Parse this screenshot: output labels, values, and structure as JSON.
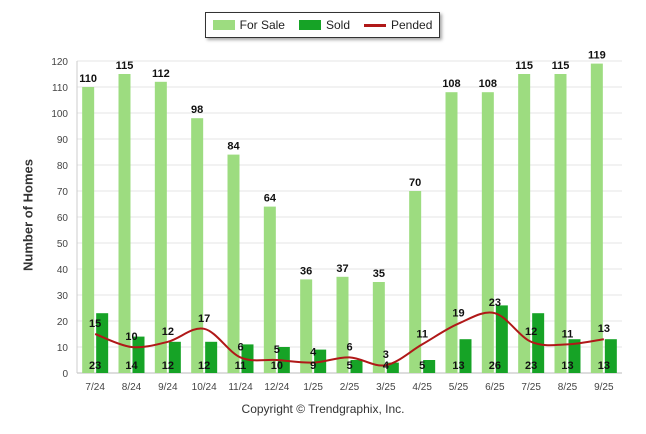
{
  "chart_data": {
    "type": "bar",
    "title": "",
    "ylabel": "Number of Homes",
    "xlabel": "",
    "ylim": [
      0,
      120
    ],
    "yticks": [
      0,
      10,
      20,
      30,
      40,
      50,
      60,
      70,
      80,
      90,
      100,
      110,
      120
    ],
    "categories": [
      "7/24",
      "8/24",
      "9/24",
      "10/24",
      "11/24",
      "12/24",
      "1/25",
      "2/25",
      "3/25",
      "4/25",
      "5/25",
      "6/25",
      "7/25",
      "8/25",
      "9/25"
    ],
    "series": [
      {
        "name": "For Sale",
        "type": "bar",
        "color": "#9ddc80",
        "values": [
          110,
          115,
          112,
          98,
          84,
          64,
          36,
          37,
          35,
          70,
          108,
          108,
          115,
          115,
          119
        ]
      },
      {
        "name": "Sold",
        "type": "bar",
        "color": "#16a326",
        "values": [
          23,
          14,
          12,
          12,
          11,
          10,
          9,
          5,
          4,
          5,
          13,
          26,
          23,
          13,
          13
        ]
      },
      {
        "name": "Pended",
        "type": "line",
        "color": "#b01818",
        "values": [
          15,
          10,
          12,
          17,
          6,
          5,
          4,
          6,
          3,
          11,
          19,
          23,
          12,
          11,
          13
        ]
      }
    ],
    "legend": "top-center",
    "grid": true
  },
  "copyright": "Copyright © Trendgraphix, Inc."
}
